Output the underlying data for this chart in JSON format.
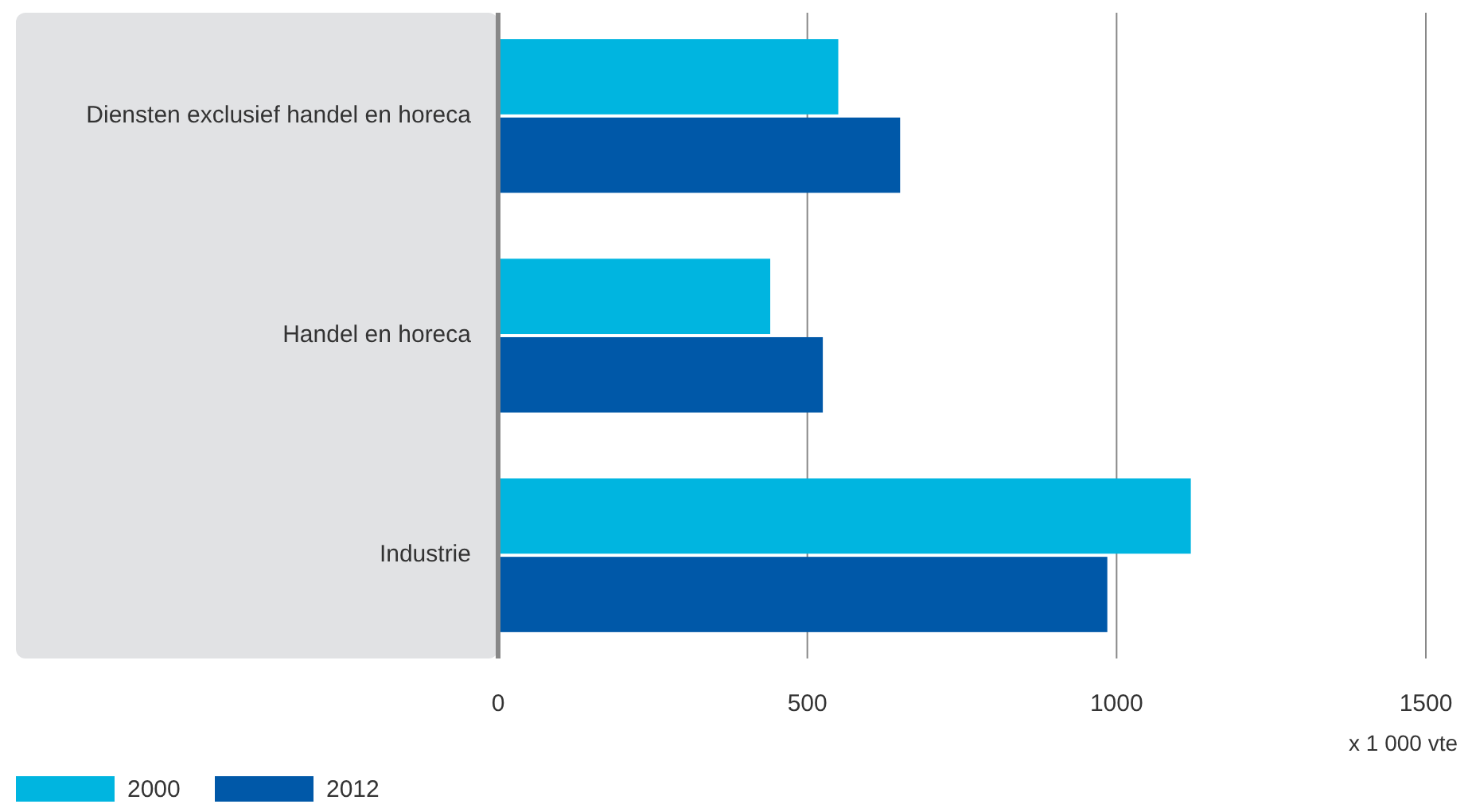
{
  "chart_data": {
    "type": "bar",
    "orientation": "horizontal",
    "categories": [
      "Diensten exclusief handel en horeca",
      "Handel en horeca",
      "Industrie"
    ],
    "series": [
      {
        "name": "2000",
        "color": "#00b5e0",
        "values": [
          550,
          440,
          1120
        ]
      },
      {
        "name": "2012",
        "color": "#0058a8",
        "values": [
          650,
          525,
          985
        ]
      }
    ],
    "xlim": [
      0,
      1500
    ],
    "xticks": [
      0,
      500,
      1000,
      1500
    ],
    "xlabel": "x 1 000 vte",
    "grid": "x",
    "legend": "bottom left"
  }
}
